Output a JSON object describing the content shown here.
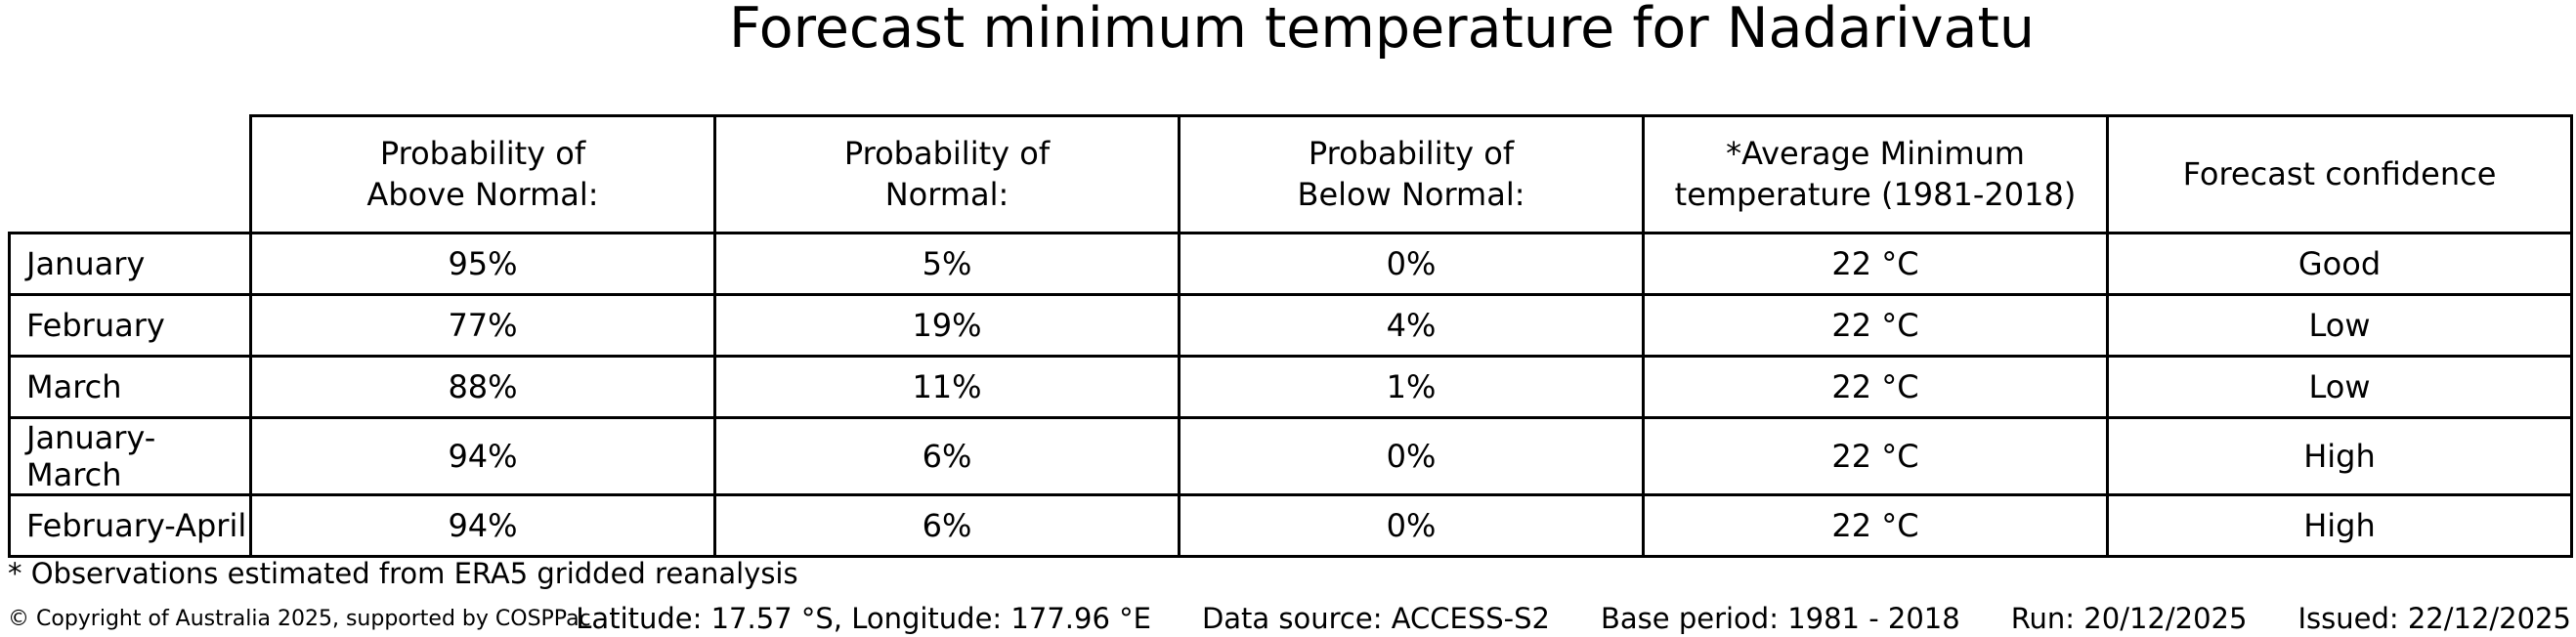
{
  "title": "Forecast minimum temperature for Nadarivatu",
  "chart_data": {
    "type": "table",
    "title": "Forecast minimum temperature for Nadarivatu",
    "columns": [
      "",
      "Probability of\nAbove Normal:",
      "Probability of\nNormal:",
      "Probability of\nBelow Normal:",
      "*Average Minimum\ntemperature (1981-2018)",
      "Forecast confidence"
    ],
    "rows": [
      [
        "January",
        "95%",
        "5%",
        "0%",
        "22 °C",
        "Good"
      ],
      [
        "February",
        "77%",
        "19%",
        "4%",
        "22 °C",
        "Low"
      ],
      [
        "March",
        "88%",
        "11%",
        "1%",
        "22 °C",
        "Low"
      ],
      [
        "January-March",
        "94%",
        "6%",
        "0%",
        "22 °C",
        "High"
      ],
      [
        "February-April",
        "94%",
        "6%",
        "0%",
        "22 °C",
        "High"
      ]
    ],
    "layout": {
      "grid": "on",
      "border_color": "#000000",
      "background": "#ffffff",
      "text_color": "#000000"
    }
  },
  "footnote": "* Observations estimated from ERA5 gridded reanalysis",
  "footer": {
    "copyright": "© Copyright of Australia 2025, supported by COSPPac",
    "location": "Latitude: 17.57 °S, Longitude: 177.96 °E",
    "data_source": "Data source: ACCESS-S2",
    "base_period": "Base period: 1981 - 2018",
    "run": "Run: 20/12/2025",
    "issued": "Issued: 22/12/2025"
  }
}
